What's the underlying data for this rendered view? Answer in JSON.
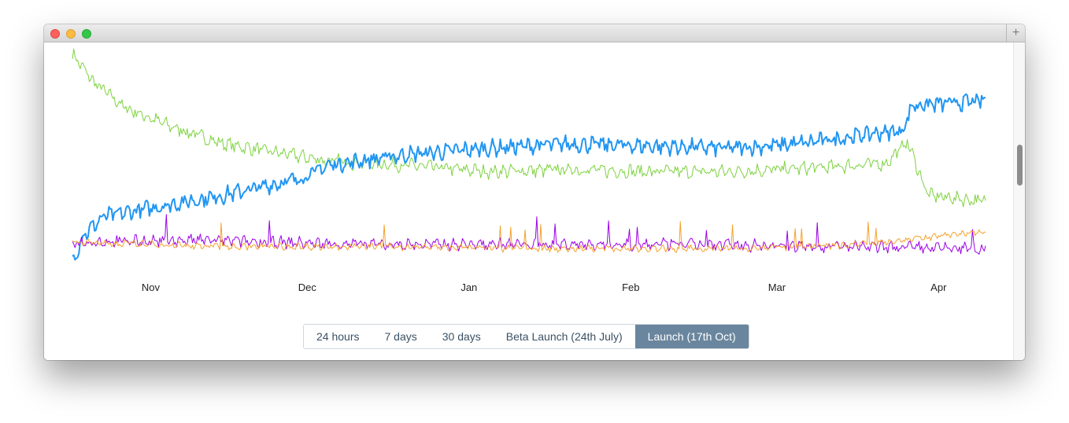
{
  "window": {
    "new_tab_symbol": "+"
  },
  "range_buttons": [
    {
      "label": "24 hours",
      "active": false
    },
    {
      "label": "7 days",
      "active": false
    },
    {
      "label": "30 days",
      "active": false
    },
    {
      "label": "Beta Launch (24th July)",
      "active": false
    },
    {
      "label": "Launch (17th Oct)",
      "active": true
    }
  ],
  "colors": {
    "blue": "#2196f3",
    "green": "#7ed23f",
    "purple": "#9c00e8",
    "orange": "#f5a12c",
    "active_button": "#6a869e"
  },
  "chart_data": {
    "type": "line",
    "x_start": "2016-10-17",
    "x_end": "2017-04-10",
    "xticks": [
      {
        "label": "Nov",
        "date": "2016-11-01"
      },
      {
        "label": "Dec",
        "date": "2016-12-01"
      },
      {
        "label": "Jan",
        "date": "2017-01-01"
      },
      {
        "label": "Feb",
        "date": "2017-02-01"
      },
      {
        "label": "Mar",
        "date": "2017-03-01"
      },
      {
        "label": "Apr",
        "date": "2017-04-01"
      }
    ],
    "ylim": [
      0,
      100
    ],
    "grid": false,
    "legend": "none",
    "series": [
      {
        "color_key": "green",
        "stroke_width": 1,
        "noise": 3,
        "points": [
          {
            "date": "2016-10-17",
            "value": 99
          },
          {
            "date": "2016-10-21",
            "value": 86
          },
          {
            "date": "2016-10-27",
            "value": 74
          },
          {
            "date": "2016-11-05",
            "value": 65
          },
          {
            "date": "2016-11-15",
            "value": 57
          },
          {
            "date": "2016-11-25",
            "value": 53
          },
          {
            "date": "2016-12-05",
            "value": 49
          },
          {
            "date": "2016-12-20",
            "value": 47
          },
          {
            "date": "2017-01-05",
            "value": 44
          },
          {
            "date": "2017-01-20",
            "value": 45
          },
          {
            "date": "2017-02-05",
            "value": 44
          },
          {
            "date": "2017-02-20",
            "value": 44
          },
          {
            "date": "2017-03-10",
            "value": 46
          },
          {
            "date": "2017-03-22",
            "value": 48
          },
          {
            "date": "2017-03-26",
            "value": 58
          },
          {
            "date": "2017-03-30",
            "value": 33
          },
          {
            "date": "2017-04-10",
            "value": 30
          }
        ]
      },
      {
        "color_key": "blue",
        "stroke_width": 2,
        "noise": 3.5,
        "points": [
          {
            "date": "2016-10-17",
            "value": 2
          },
          {
            "date": "2016-10-19",
            "value": 14
          },
          {
            "date": "2016-10-23",
            "value": 23
          },
          {
            "date": "2016-11-01",
            "value": 27
          },
          {
            "date": "2016-11-15",
            "value": 33
          },
          {
            "date": "2016-11-30",
            "value": 41
          },
          {
            "date": "2016-12-05",
            "value": 47
          },
          {
            "date": "2016-12-20",
            "value": 52
          },
          {
            "date": "2017-01-05",
            "value": 55
          },
          {
            "date": "2017-01-20",
            "value": 57
          },
          {
            "date": "2017-02-05",
            "value": 56
          },
          {
            "date": "2017-02-20",
            "value": 55
          },
          {
            "date": "2017-03-05",
            "value": 57
          },
          {
            "date": "2017-03-20",
            "value": 62
          },
          {
            "date": "2017-03-25",
            "value": 63
          },
          {
            "date": "2017-03-27",
            "value": 75
          },
          {
            "date": "2017-04-10",
            "value": 77
          }
        ]
      },
      {
        "color_key": "purple",
        "stroke_width": 1,
        "noise": 2.5,
        "points": [
          {
            "date": "2016-10-17",
            "value": 11
          },
          {
            "date": "2016-11-10",
            "value": 12
          },
          {
            "date": "2016-12-10",
            "value": 10
          },
          {
            "date": "2017-01-10",
            "value": 10
          },
          {
            "date": "2017-02-10",
            "value": 10
          },
          {
            "date": "2017-03-10",
            "value": 9
          },
          {
            "date": "2017-04-10",
            "value": 8
          }
        ]
      },
      {
        "color_key": "orange",
        "stroke_width": 1,
        "noise": 1.5,
        "points": [
          {
            "date": "2016-10-17",
            "value": 11
          },
          {
            "date": "2016-11-15",
            "value": 9
          },
          {
            "date": "2016-12-15",
            "value": 9
          },
          {
            "date": "2017-01-15",
            "value": 8
          },
          {
            "date": "2017-02-15",
            "value": 8
          },
          {
            "date": "2017-03-10",
            "value": 9
          },
          {
            "date": "2017-03-25",
            "value": 12
          },
          {
            "date": "2017-04-10",
            "value": 16
          }
        ]
      }
    ]
  }
}
